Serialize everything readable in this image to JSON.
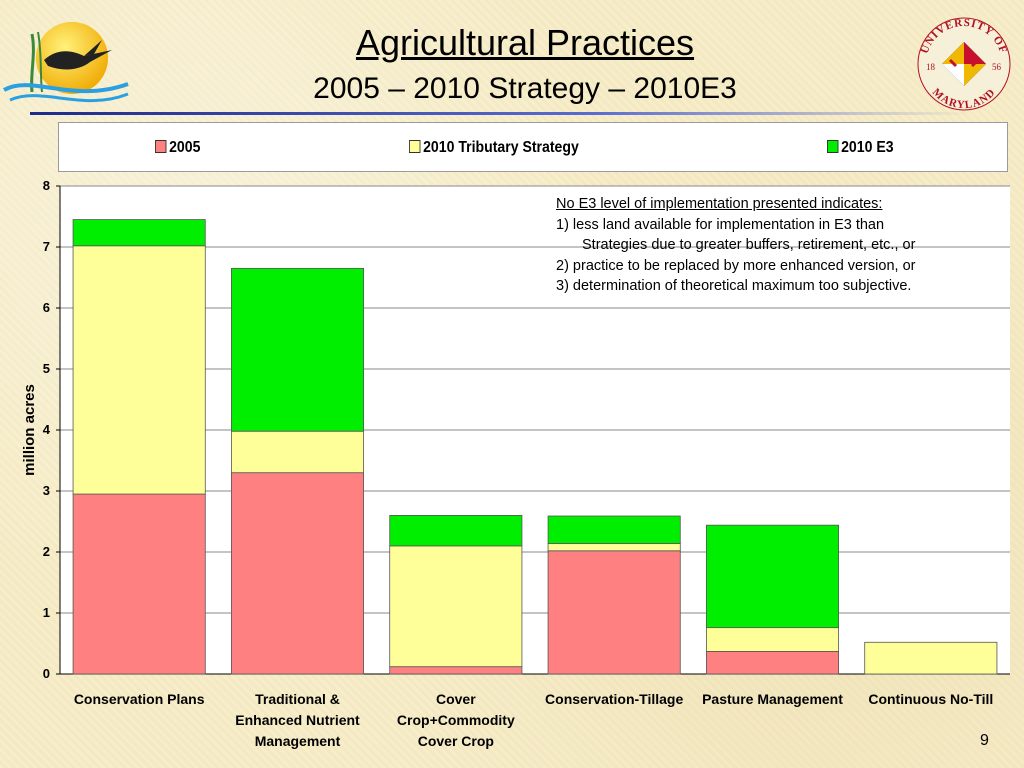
{
  "slide": {
    "title": "Agricultural Practices",
    "subtitle": "2005 – 2010 Strategy – 2010E3",
    "page_number": "9",
    "logo_right_text": "UNIVERSITY OF MARYLAND",
    "logo_right_year_left": "18",
    "logo_right_year_right": "56"
  },
  "note": {
    "heading": "No E3 level of implementation presented indicates:",
    "lines": [
      "1)  less land available for implementation in E3 than",
      "Strategies due to greater buffers, retirement, etc., or",
      "2)  practice to be replaced by more enhanced version, or",
      "3)  determination of theoretical maximum too subjective."
    ]
  },
  "chart_data": {
    "type": "bar",
    "stacked": true,
    "title": "",
    "xlabel": "",
    "ylabel": "million acres",
    "ylim": [
      0,
      8
    ],
    "yticks": [
      "0",
      "1",
      "2",
      "3",
      "4",
      "5",
      "6",
      "7",
      "8"
    ],
    "grid": true,
    "legend_position": "top",
    "categories": [
      [
        "Conservation Plans"
      ],
      [
        "Traditional &",
        "Enhanced Nutrient",
        "Management"
      ],
      [
        "Cover",
        "Crop+Commodity",
        "Cover Crop"
      ],
      [
        "Conservation-Tillage"
      ],
      [
        "Pasture Management"
      ],
      [
        "Continuous No-Till"
      ]
    ],
    "series": [
      {
        "name": "2005",
        "color": "#ff8080",
        "values": [
          2.95,
          3.3,
          0.12,
          2.02,
          0.37,
          0.0
        ]
      },
      {
        "name": "2010 Tributary Strategy",
        "color": "#ffff99",
        "values": [
          4.07,
          0.68,
          1.98,
          0.12,
          0.39,
          0.52
        ]
      },
      {
        "name": "2010 E3",
        "color": "#00ee00",
        "values": [
          0.43,
          2.67,
          0.5,
          0.45,
          1.68,
          0.0
        ]
      }
    ]
  }
}
